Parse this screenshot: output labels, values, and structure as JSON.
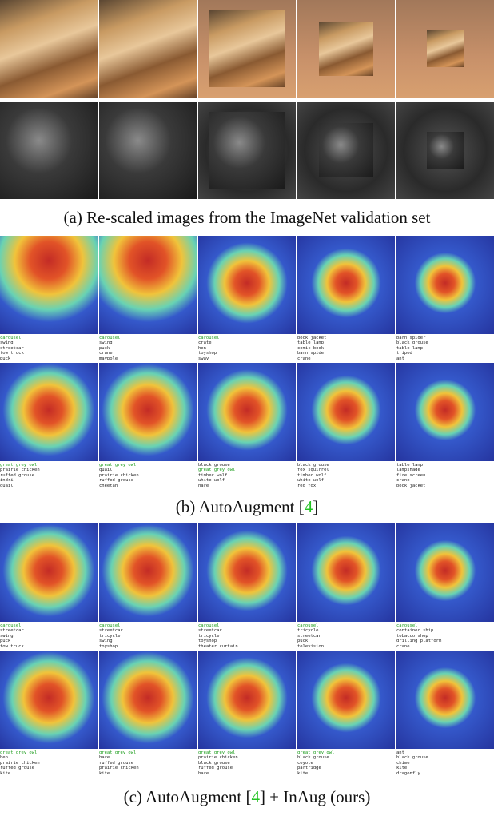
{
  "panels": [
    {
      "caption": [
        "(a) Re-scaled images from the ImageNet validation set"
      ],
      "rows": [
        {
          "cells": [
            {},
            {},
            {},
            {},
            {}
          ]
        },
        {
          "cells": [
            {},
            {},
            {},
            {},
            {}
          ]
        }
      ]
    },
    {
      "caption": [
        "(b) AutoAugment [",
        "4",
        "]"
      ],
      "link": 1,
      "rows": [
        {
          "cells": [
            {
              "labels": [
                "carousel",
                "swing",
                "streetcar",
                "tow truck",
                "puck"
              ],
              "highlight": 0
            },
            {
              "labels": [
                "carousel",
                "swing",
                "puck",
                "crane",
                "maypole"
              ],
              "highlight": 0
            },
            {
              "labels": [
                "carousel",
                "crate",
                "hen",
                "toyshop",
                "sway"
              ],
              "highlight": 0
            },
            {
              "labels": [
                "book jacket",
                "table lamp",
                "comic book",
                "barn spider",
                "crane"
              ]
            },
            {
              "labels": [
                "barn spider",
                "black grouse",
                "table lamp",
                "tripod",
                "ant"
              ]
            }
          ]
        },
        {
          "cells": [
            {
              "labels": [
                "great grey owl",
                "prairie chicken",
                "ruffed grouse",
                "indri",
                "quail"
              ],
              "highlight": 0
            },
            {
              "labels": [
                "great grey owl",
                "quail",
                "prairie chicken",
                "ruffed grouse",
                "cheetah"
              ],
              "highlight": 0
            },
            {
              "labels": [
                "black grouse",
                "great grey owl",
                "timber wolf",
                "white wolf",
                "hare"
              ],
              "highlight": 1
            },
            {
              "labels": [
                "black grouse",
                "fox squirrel",
                "timber wolf",
                "white wolf",
                "red fox"
              ]
            },
            {
              "labels": [
                "table lamp",
                "lampshade",
                "fire screen",
                "crane",
                "book jacket"
              ]
            }
          ]
        }
      ]
    },
    {
      "caption": [
        "(c) AutoAugment [",
        "4",
        "] + InAug (ours)"
      ],
      "link": 1,
      "rows": [
        {
          "cells": [
            {
              "labels": [
                "carousel",
                "streetcar",
                "swing",
                "puck",
                "tow truck"
              ],
              "highlight": 0
            },
            {
              "labels": [
                "carousel",
                "streetcar",
                "tricycle",
                "swing",
                "toyshop"
              ],
              "highlight": 0
            },
            {
              "labels": [
                "carousel",
                "streetcar",
                "tricycle",
                "toyshop",
                "theater curtain"
              ],
              "highlight": 0
            },
            {
              "labels": [
                "carousel",
                "tricycle",
                "streetcar",
                "puck",
                "television"
              ],
              "highlight": 0
            },
            {
              "labels": [
                "carousel",
                "container ship",
                "tobacco shop",
                "drilling platform",
                "crane"
              ],
              "highlight": 0
            }
          ]
        },
        {
          "cells": [
            {
              "labels": [
                "great grey owl",
                "hen",
                "prairie chicken",
                "ruffed grouse",
                "kite"
              ],
              "highlight": 0
            },
            {
              "labels": [
                "great grey owl",
                "hare",
                "ruffed grouse",
                "prairie chicken",
                "kite"
              ],
              "highlight": 0
            },
            {
              "labels": [
                "great grey owl",
                "prairie chicken",
                "black grouse",
                "ruffed grouse",
                "hare"
              ],
              "highlight": 0
            },
            {
              "labels": [
                "great grey owl",
                "black grouse",
                "coyote",
                "partridge",
                "kite"
              ],
              "highlight": 0
            },
            {
              "labels": [
                "ant",
                "black grouse",
                "chime",
                "kite",
                "dragonfly"
              ]
            }
          ]
        }
      ]
    }
  ]
}
